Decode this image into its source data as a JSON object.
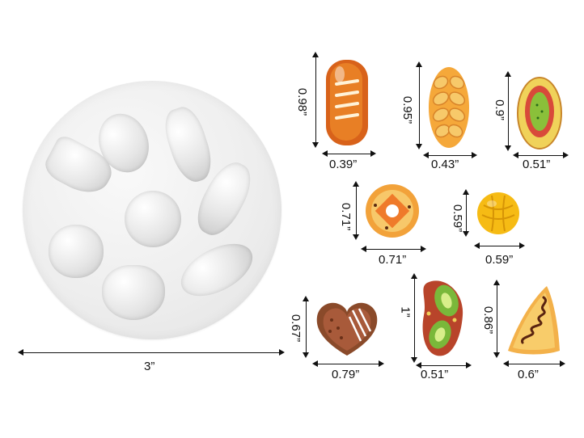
{
  "mold": {
    "diameter_label": "3”"
  },
  "items": [
    {
      "name": "long-bread",
      "height_label": "0.98”",
      "width_label": "0.39”"
    },
    {
      "name": "braided-bread",
      "height_label": "0.95”",
      "width_label": "0.43”"
    },
    {
      "name": "oval-pastry",
      "height_label": "0.9”",
      "width_label": "0.51”"
    },
    {
      "name": "round-tart",
      "height_label": "0.71”",
      "width_label": "0.71”"
    },
    {
      "name": "melon-bun",
      "height_label": "0.59”",
      "width_label": "0.59”"
    },
    {
      "name": "heart-cake",
      "height_label": "0.67”",
      "width_label": "0.79”"
    },
    {
      "name": "kiwi-bread",
      "height_label": "1”",
      "width_label": "0.51”"
    },
    {
      "name": "triangle-pastry",
      "height_label": "0.86”",
      "width_label": "0.6”"
    }
  ]
}
